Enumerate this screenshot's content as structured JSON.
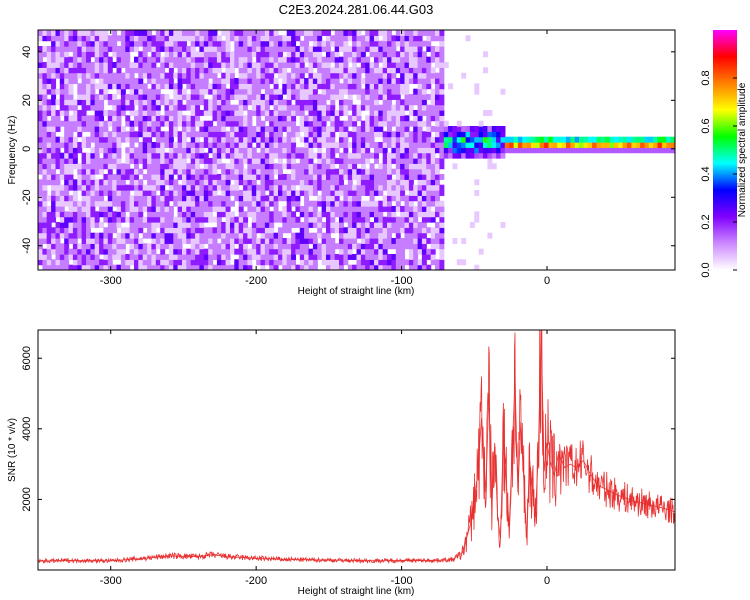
{
  "title": "C2E3.2024.281.06.44.G03",
  "chart_data": [
    {
      "type": "heatmap",
      "xlabel": "Height of straight line (km)",
      "ylabel": "Frequency (Hz)",
      "xlim": [
        -350,
        88
      ],
      "ylim": [
        -50,
        49
      ],
      "xticks": [
        "-300",
        "-200",
        "-100",
        "0"
      ],
      "xtick_values": [
        -300,
        -200,
        -100,
        0
      ],
      "yticks": [
        "-40",
        "-20",
        "0",
        "20",
        "40"
      ],
      "ytick_values": [
        -40,
        -20,
        0,
        20,
        40
      ],
      "colorbar": {
        "label": "Normalized spectral amplitude",
        "range": [
          0,
          1
        ],
        "ticks": [
          "0.0",
          "0.2",
          "0.4",
          "0.6",
          "0.8"
        ],
        "tick_values": [
          0.0,
          0.2,
          0.4,
          0.6,
          0.8
        ],
        "colors": [
          "#ffffff",
          "#cc88ff",
          "#8000ff",
          "#0000ff",
          "#00ffff",
          "#00ff00",
          "#ffff00",
          "#ff8000",
          "#ff0000",
          "#ff00ff"
        ]
      },
      "regions": [
        {
          "desc": "noise",
          "x_range": [
            -350,
            -73
          ],
          "y_range": [
            -50,
            49
          ],
          "amplitude": 0.1
        },
        {
          "desc": "signal onset",
          "x_range": [
            -72,
            -30
          ],
          "y_center": 2,
          "y_halfwidth": 6,
          "amplitude": 0.45
        },
        {
          "desc": "signal",
          "x_range": [
            -30,
            88
          ],
          "y_center": 1,
          "y_halfwidth": 2,
          "amplitude": 0.9
        }
      ]
    },
    {
      "type": "line",
      "xlabel": "Height of straight line (km)",
      "ylabel": "SNR (10 * v/v)",
      "xlim": [
        -350,
        88
      ],
      "ylim": [
        0,
        6800
      ],
      "xticks": [
        "-300",
        "-200",
        "-100",
        "0"
      ],
      "xtick_values": [
        -300,
        -200,
        -100,
        0
      ],
      "yticks": [
        "2000",
        "4000",
        "6000"
      ],
      "ytick_values": [
        2000,
        4000,
        6000
      ],
      "color": "#e83030",
      "series": [
        {
          "x": [
            -350,
            -330,
            -300,
            -280,
            -260,
            -240,
            -230,
            -220,
            -200,
            -180,
            -150,
            -120,
            -100,
            -80,
            -65,
            -58,
            -52,
            -48,
            -45,
            -42,
            -40,
            -38,
            -36,
            -34,
            -32,
            -30,
            -28,
            -26,
            -24,
            -22,
            -20,
            -18,
            -16,
            -14,
            -12,
            -10,
            -8,
            -6,
            -4,
            -2,
            0,
            2,
            5,
            8,
            12,
            16,
            20,
            25,
            30,
            35,
            40,
            50,
            60,
            70,
            80,
            88
          ],
          "y": [
            250,
            270,
            260,
            320,
            400,
            380,
            430,
            380,
            330,
            300,
            280,
            260,
            270,
            270,
            290,
            500,
            1400,
            2600,
            4300,
            2200,
            5000,
            1800,
            3600,
            1500,
            900,
            3900,
            2500,
            1200,
            3300,
            5400,
            2200,
            4200,
            2600,
            900,
            3100,
            2300,
            1500,
            3300,
            6750,
            2800,
            3600,
            3100,
            2700,
            3300,
            2900,
            3000,
            2900,
            3100,
            2700,
            2400,
            2300,
            2100,
            1950,
            1850,
            1750,
            1650
          ]
        }
      ]
    }
  ]
}
